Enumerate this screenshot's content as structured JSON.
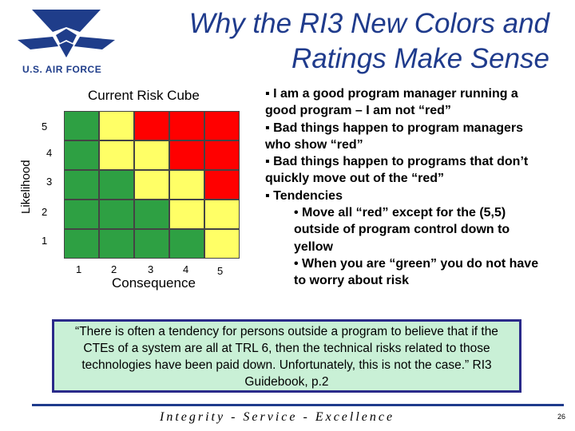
{
  "logo": {
    "text": "U.S. AIR FORCE"
  },
  "title": {
    "line1": "Why the RI3 New Colors and",
    "line2": "Ratings Make Sense"
  },
  "risk_cube": {
    "title": "Current Risk Cube",
    "y_label": "Likelihood",
    "x_label": "Consequence",
    "y_ticks": [
      "5",
      "4",
      "3",
      "2",
      "1"
    ],
    "x_ticks": [
      "1",
      "2",
      "3",
      "4",
      "5"
    ],
    "colors": {
      "green": "#2ea043",
      "yellow": "#ffff66",
      "red": "#ff0000"
    },
    "rows": [
      [
        "green",
        "yellow",
        "red",
        "red",
        "red"
      ],
      [
        "green",
        "yellow",
        "yellow",
        "red",
        "red"
      ],
      [
        "green",
        "green",
        "yellow",
        "yellow",
        "red"
      ],
      [
        "green",
        "green",
        "green",
        "yellow",
        "yellow"
      ],
      [
        "green",
        "green",
        "green",
        "green",
        "yellow"
      ]
    ]
  },
  "bullets": [
    {
      "text": "▪ I am a good program manager running a good program – I am not “red”",
      "level": 0
    },
    {
      "text": "▪ Bad things happen to program managers who show “red”",
      "level": 0
    },
    {
      "text": "▪  Bad things happen to programs that don’t quickly move out of the “red”",
      "level": 0
    },
    {
      "text": "▪ Tendencies",
      "level": 0
    },
    {
      "text": "• Move all “red” except for the (5,5) outside of program control down to yellow",
      "level": 1
    },
    {
      "text": "• When you are “green” you do not have to worry about risk",
      "level": 1
    }
  ],
  "quote": "“There is often a tendency for persons outside a program to believe that if the CTEs of a system are all at TRL 6, then the technical risks related to those technologies have been paid down.  Unfortunately, this is not the case.” RI3 Guidebook, p.2",
  "footer": "Integrity - Service - Excellence",
  "page_number": "26"
}
